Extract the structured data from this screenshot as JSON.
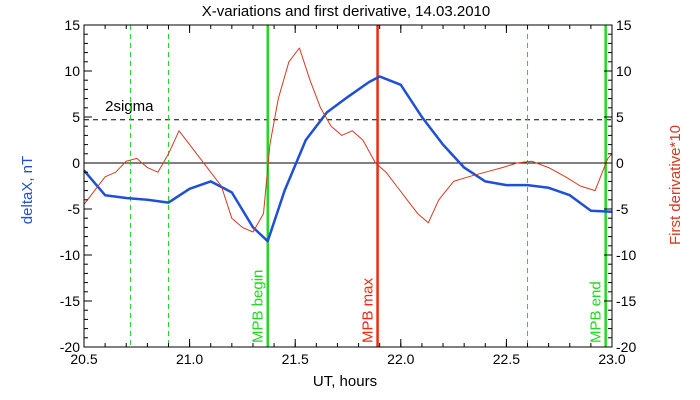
{
  "chart_data": {
    "type": "line",
    "title": "X-variations and first derivative, 14.03.2010",
    "xlabel": "UT, hours",
    "ylabel_left": "deltaX, nT",
    "ylabel_right": "First derivative*10",
    "xlim": [
      20.5,
      23.0
    ],
    "ylim": [
      -20,
      15
    ],
    "x_ticks": [
      "20.5",
      "21.0",
      "21.5",
      "22.0",
      "22.5",
      "23.0"
    ],
    "y_ticks": [
      "-20",
      "-15",
      "-10",
      "-5",
      "0",
      "5",
      "10",
      "15"
    ],
    "colors": {
      "deltaX": "#1f4fd6",
      "derivative": "#d33a1f",
      "mpb_boundary": "#22d822",
      "mpb_max": "#ee2a10",
      "sigma_lines": "#22d822"
    },
    "series": [
      {
        "name": "deltaX",
        "x": [
          20.5,
          20.6,
          20.7,
          20.8,
          20.9,
          21.0,
          21.1,
          21.2,
          21.3,
          21.37,
          21.45,
          21.55,
          21.65,
          21.75,
          21.85,
          21.9,
          22.0,
          22.1,
          22.2,
          22.3,
          22.4,
          22.5,
          22.6,
          22.7,
          22.8,
          22.9,
          23.0
        ],
        "y": [
          -0.8,
          -3.5,
          -3.8,
          -4.0,
          -4.3,
          -2.8,
          -2.0,
          -3.2,
          -7.0,
          -8.5,
          -3.0,
          2.5,
          5.5,
          7.2,
          8.8,
          9.4,
          8.5,
          5.0,
          2.0,
          -0.5,
          -2.0,
          -2.4,
          -2.4,
          -2.7,
          -3.5,
          -5.2,
          -5.3
        ]
      },
      {
        "name": "first derivative*10",
        "x": [
          20.5,
          20.55,
          20.6,
          20.65,
          20.7,
          20.75,
          20.8,
          20.85,
          20.9,
          20.95,
          21.0,
          21.05,
          21.1,
          21.15,
          21.2,
          21.25,
          21.3,
          21.35,
          21.38,
          21.42,
          21.47,
          21.52,
          21.57,
          21.62,
          21.67,
          21.72,
          21.77,
          21.82,
          21.88,
          21.93,
          21.98,
          22.03,
          22.08,
          22.13,
          22.18,
          22.25,
          22.32,
          22.4,
          22.48,
          22.55,
          22.62,
          22.7,
          22.78,
          22.85,
          22.92,
          22.98,
          23.0
        ],
        "y": [
          -4.5,
          -3.0,
          -1.5,
          -1.0,
          0.2,
          0.5,
          -0.5,
          -1.0,
          1.0,
          3.5,
          2.0,
          0.5,
          -1.0,
          -2.5,
          -6.0,
          -7.0,
          -7.5,
          -5.5,
          2.0,
          7.0,
          11.0,
          12.5,
          9.0,
          6.0,
          4.0,
          3.0,
          3.5,
          2.5,
          0.0,
          -1.0,
          -2.5,
          -4.0,
          -5.5,
          -6.5,
          -4.0,
          -2.0,
          -1.5,
          -1.0,
          -0.5,
          0.0,
          0.2,
          -0.5,
          -1.5,
          -2.5,
          -3.0,
          0.5,
          1.0
        ]
      }
    ],
    "reference_lines": {
      "zero": 0,
      "two_sigma": 4.7,
      "two_sigma_label": "2sigma"
    },
    "vertical_markers": [
      {
        "x": 20.72,
        "style": "dashed",
        "kind": "sigma"
      },
      {
        "x": 20.9,
        "style": "dashed",
        "kind": "sigma"
      },
      {
        "x": 21.37,
        "style": "solid",
        "kind": "boundary",
        "label": "MPB begin"
      },
      {
        "x": 21.89,
        "style": "solid",
        "kind": "max",
        "label": "MPB max"
      },
      {
        "x": 22.6,
        "style": "dashed",
        "kind": "sigma"
      },
      {
        "x": 22.97,
        "style": "solid",
        "kind": "boundary",
        "label": "MPB end"
      }
    ],
    "grid": false,
    "legend": "none"
  }
}
